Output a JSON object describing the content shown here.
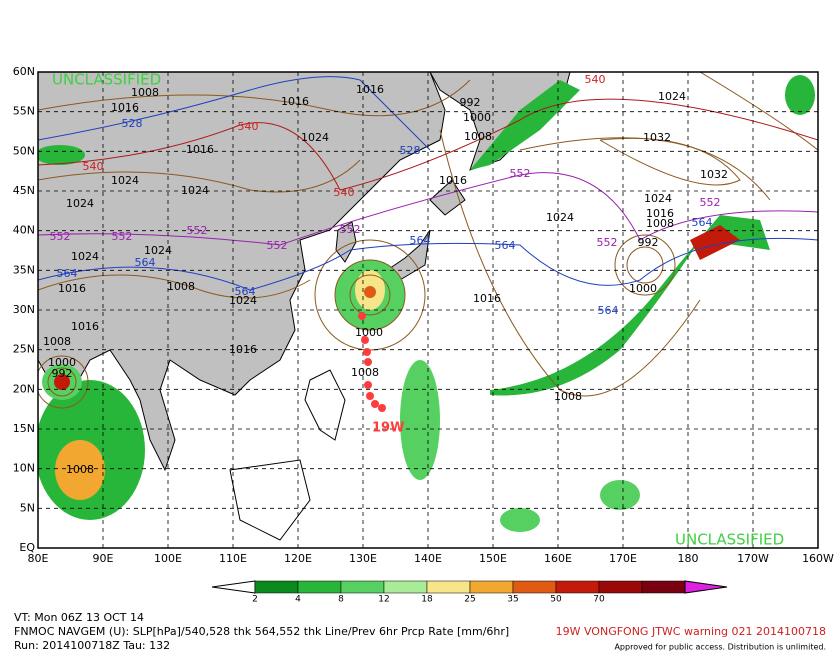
{
  "map": {
    "lat_labels": [
      "60N",
      "55N",
      "50N",
      "45N",
      "40N",
      "35N",
      "30N",
      "25N",
      "20N",
      "15N",
      "10N",
      "5N",
      "EQ"
    ],
    "lon_labels": [
      "80E",
      "90E",
      "100E",
      "110E",
      "120E",
      "130E",
      "140E",
      "150E",
      "160E",
      "170E",
      "180",
      "170W",
      "160W"
    ],
    "classification_top": "UNCLASSIFIED",
    "classification_bottom": "UNCLASSIFIED",
    "storm_label": "19W",
    "slp_color": "#8b5a1e",
    "slp_labels": [
      "1008",
      "1016",
      "1016",
      "1016",
      "992",
      "1000",
      "1008",
      "1024",
      "1032",
      "1032",
      "1024",
      "1024",
      "1024",
      "1016",
      "1024",
      "1016",
      "1024",
      "1024",
      "1016",
      "1008",
      "992",
      "1000",
      "1016",
      "1008",
      "1024",
      "1024",
      "1016",
      "1008",
      "1024",
      "1016",
      "1016",
      "1008",
      "1000",
      "992",
      "1008",
      "1000",
      "1008"
    ],
    "thickness_groups": [
      {
        "color": "#1f3fbf",
        "labels": [
          "528",
          "528",
          "564",
          "564",
          "564",
          "564",
          "564",
          "564",
          "564"
        ]
      },
      {
        "color": "#d02020",
        "labels": [
          "540",
          "540",
          "540",
          "540"
        ]
      },
      {
        "color": "#9a20b0",
        "labels": [
          "552",
          "552",
          "552",
          "552",
          "552",
          "552",
          "552",
          "552"
        ]
      }
    ]
  },
  "colorbar": {
    "ticks": [
      2,
      4,
      8,
      12,
      18,
      25,
      35,
      50,
      70
    ],
    "colors": [
      "#0a8a1a",
      "#27b53a",
      "#56d060",
      "#a8ec98",
      "#f7e58a",
      "#f2a830",
      "#e05a14",
      "#c41a0a",
      "#9a0808",
      "#780010",
      "#e020e0"
    ]
  },
  "footer": {
    "valid_time": "VT: Mon 06Z 13 OCT 14",
    "description": "FNMOC NAVGEM (U): SLP[hPa]/540,528 thk 564,552 thk Line/Prev 6hr Prcp Rate [mm/6hr]",
    "run": "Run: 2014100718Z Tau: 132",
    "warning": "19W VONGFONG JTWC warning 021 2014100718",
    "release": "Approved for public access. Distribution is unlimited."
  }
}
